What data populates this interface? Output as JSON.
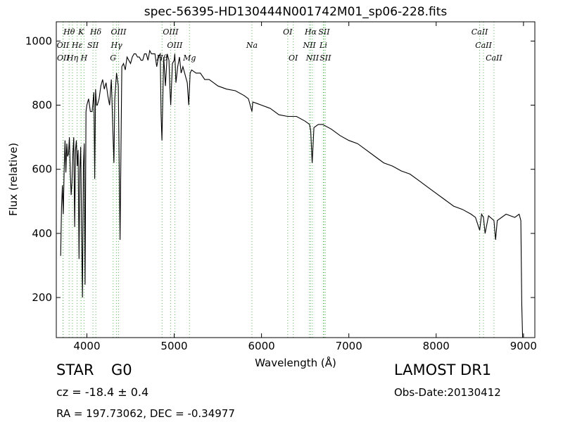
{
  "chart_data": {
    "type": "line",
    "title": "spec-56395-HD130444N001742M01_sp06-228.fits",
    "xlabel": "Wavelength (Å)",
    "ylabel": "Flux (relative)",
    "xlim": [
      3650,
      9130
    ],
    "ylim": [
      75,
      1060
    ],
    "xticks": [
      4000,
      5000,
      6000,
      7000,
      8000,
      9000
    ],
    "yticks": [
      200,
      400,
      600,
      800,
      1000
    ],
    "grid": false,
    "legend": "none",
    "series": [
      {
        "x": [
          3700,
          3710,
          3720,
          3730,
          3740,
          3750,
          3760,
          3770,
          3780,
          3790,
          3800,
          3810,
          3820,
          3830,
          3840,
          3850,
          3860,
          3870,
          3880,
          3890,
          3900,
          3910,
          3920,
          3930,
          3940,
          3950,
          3960,
          3970,
          3980,
          3990,
          4000,
          4020,
          4040,
          4060,
          4080,
          4090,
          4100,
          4110,
          4120,
          4140,
          4160,
          4180,
          4200,
          4220,
          4240,
          4260,
          4280,
          4300,
          4310,
          4320,
          4340,
          4360,
          4380,
          4400,
          4420,
          4440,
          4460,
          4480,
          4500,
          4520,
          4540,
          4560,
          4580,
          4600,
          4620,
          4640,
          4660,
          4680,
          4700,
          4720,
          4740,
          4760,
          4780,
          4800,
          4820,
          4840,
          4850,
          4860,
          4880,
          4900,
          4920,
          4940,
          4950,
          4960,
          4980,
          5000,
          5007,
          5020,
          5040,
          5060,
          5080,
          5100,
          5150,
          5167,
          5183,
          5200,
          5250,
          5300,
          5350,
          5400,
          5450,
          5500,
          5600,
          5700,
          5800,
          5850,
          5890,
          5900,
          5950,
          6000,
          6100,
          6200,
          6300,
          6400,
          6500,
          6550,
          6563,
          6580,
          6600,
          6650,
          6700,
          6800,
          6900,
          7000,
          7100,
          7200,
          7300,
          7400,
          7500,
          7600,
          7700,
          7800,
          7900,
          8000,
          8100,
          8200,
          8300,
          8400,
          8450,
          8498,
          8520,
          8542,
          8560,
          8600,
          8662,
          8680,
          8700,
          8800,
          8900,
          8950,
          8970,
          8980,
          8990,
          9000
        ],
        "values": [
          330,
          480,
          550,
          460,
          600,
          690,
          590,
          680,
          640,
          650,
          700,
          590,
          520,
          560,
          650,
          700,
          420,
          660,
          690,
          610,
          660,
          320,
          600,
          670,
          400,
          200,
          610,
          680,
          240,
          780,
          800,
          820,
          780,
          780,
          840,
          570,
          850,
          800,
          800,
          820,
          860,
          880,
          850,
          870,
          830,
          800,
          880,
          700,
          620,
          820,
          900,
          860,
          380,
          920,
          930,
          910,
          950,
          940,
          930,
          950,
          960,
          960,
          950,
          950,
          940,
          940,
          960,
          960,
          940,
          970,
          960,
          960,
          960,
          920,
          950,
          960,
          770,
          690,
          950,
          860,
          960,
          940,
          860,
          800,
          930,
          940,
          960,
          870,
          920,
          950,
          900,
          920,
          870,
          800,
          900,
          910,
          900,
          900,
          880,
          880,
          870,
          860,
          850,
          845,
          830,
          820,
          780,
          810,
          805,
          800,
          790,
          770,
          765,
          765,
          750,
          740,
          720,
          620,
          730,
          740,
          740,
          725,
          705,
          690,
          680,
          660,
          640,
          620,
          610,
          595,
          585,
          565,
          545,
          525,
          505,
          485,
          475,
          460,
          450,
          410,
          460,
          450,
          400,
          455,
          440,
          380,
          440,
          460,
          450,
          460,
          440,
          180,
          60,
          40
        ]
      }
    ],
    "line_markers": [
      {
        "label": "Hθ",
        "x": 3797,
        "row": 1
      },
      {
        "label": "K",
        "x": 3934,
        "row": 1
      },
      {
        "label": "Hδ",
        "x": 4102,
        "row": 1
      },
      {
        "label": "OIII",
        "x": 4363,
        "row": 1
      },
      {
        "label": "OIII",
        "x": 4959,
        "row": 1
      },
      {
        "label": "OI",
        "x": 6300,
        "row": 1
      },
      {
        "label": "Hα",
        "x": 6563,
        "row": 1
      },
      {
        "label": "SII",
        "x": 6716,
        "row": 1
      },
      {
        "label": "CaII",
        "x": 8498,
        "row": 1
      },
      {
        "label": "OII",
        "x": 3726,
        "row": 2
      },
      {
        "label": "Hε",
        "x": 3889,
        "row": 2
      },
      {
        "label": "SII",
        "x": 4070,
        "row": 2
      },
      {
        "label": "Hγ",
        "x": 4340,
        "row": 2
      },
      {
        "label": "OIII",
        "x": 5007,
        "row": 2
      },
      {
        "label": "Na",
        "x": 5890,
        "row": 2
      },
      {
        "label": "NII",
        "x": 6548,
        "row": 2
      },
      {
        "label": "Li",
        "x": 6708,
        "row": 2
      },
      {
        "label": "CaII",
        "x": 8542,
        "row": 2
      },
      {
        "label": "OII",
        "x": 3729,
        "row": 3
      },
      {
        "label": "Hη",
        "x": 3835,
        "row": 3
      },
      {
        "label": "H",
        "x": 3968,
        "row": 3
      },
      {
        "label": "G",
        "x": 4300,
        "row": 3
      },
      {
        "label": "Hβ",
        "x": 4861,
        "row": 3
      },
      {
        "label": "Mg",
        "x": 5175,
        "row": 3
      },
      {
        "label": "OI",
        "x": 6363,
        "row": 3
      },
      {
        "label": "NII",
        "x": 6583,
        "row": 3
      },
      {
        "label": "SII",
        "x": 6731,
        "row": 3
      },
      {
        "label": "CaII",
        "x": 8662,
        "row": 3
      }
    ]
  },
  "info": {
    "object_type": "STAR",
    "subclass": "G0",
    "redshift": "cz = -18.4 ± 0.4",
    "coords": "RA = 197.73062, DEC = -0.34977",
    "survey": "LAMOST DR1",
    "obs_date": "Obs-Date:20130412"
  }
}
